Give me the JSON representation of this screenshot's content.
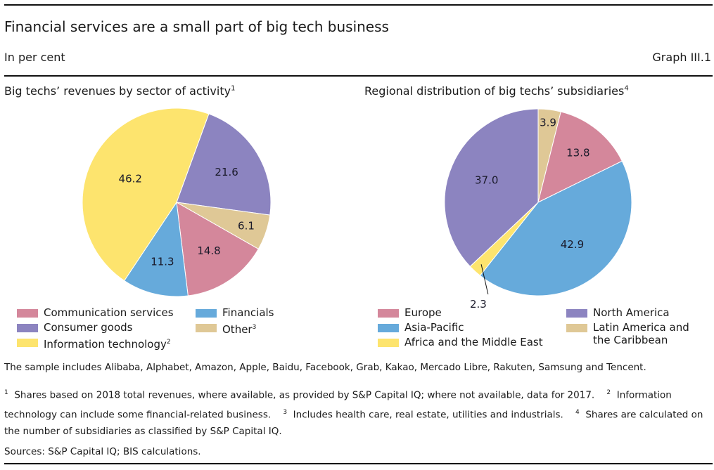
{
  "header": {
    "title": "Financial services are a small part of big tech business",
    "subtitle": "In per cent",
    "graph_id": "Graph III.1"
  },
  "colors": {
    "pink": "#d4879b",
    "purple": "#8c84c0",
    "yellow": "#fde46e",
    "blue": "#66aadb",
    "tan": "#dfc896"
  },
  "chart_data": [
    {
      "type": "pie",
      "title": "Big techs’ revenues by sector of activity",
      "title_footnote": "1",
      "unit": "per cent",
      "slices": [
        {
          "label": "Consumer goods",
          "value": 21.6,
          "color": "#8c84c0"
        },
        {
          "label": "Other",
          "value": 6.1,
          "color": "#dfc896"
        },
        {
          "label": "Communication services",
          "value": 14.8,
          "color": "#d4879b"
        },
        {
          "label": "Financials",
          "value": 11.3,
          "color": "#66aadb"
        },
        {
          "label": "Information technology",
          "value": 46.2,
          "color": "#fde46e"
        }
      ],
      "legend": [
        {
          "label": "Communication services",
          "footnote": "",
          "color": "#d4879b"
        },
        {
          "label": "Consumer goods",
          "footnote": "",
          "color": "#8c84c0"
        },
        {
          "label": "Information technology",
          "footnote": "2",
          "color": "#fde46e"
        },
        {
          "label": "Financials",
          "footnote": "",
          "color": "#66aadb"
        },
        {
          "label": "Other",
          "footnote": "3",
          "color": "#dfc896"
        }
      ]
    },
    {
      "type": "pie",
      "title": "Regional distribution of big techs’ subsidiaries",
      "title_footnote": "4",
      "unit": "per cent",
      "slices": [
        {
          "label": "Latin America and the Caribbean",
          "value": 3.9,
          "color": "#dfc896"
        },
        {
          "label": "Europe",
          "value": 13.8,
          "color": "#d4879b"
        },
        {
          "label": "Asia-Pacific",
          "value": 42.9,
          "color": "#66aadb"
        },
        {
          "label": "Africa and the Middle East",
          "value": 2.3,
          "color": "#fde46e"
        },
        {
          "label": "North America",
          "value": 37.0,
          "color": "#8c84c0"
        }
      ],
      "legend": [
        {
          "label": "Europe",
          "footnote": "",
          "color": "#d4879b"
        },
        {
          "label": "Asia-Pacific",
          "footnote": "",
          "color": "#66aadb"
        },
        {
          "label": "Africa and the Middle East",
          "footnote": "",
          "color": "#fde46e"
        },
        {
          "label": "North America",
          "footnote": "",
          "color": "#8c84c0"
        },
        {
          "label": "Latin America and",
          "footnote": "",
          "color": "#dfc896",
          "label_line2": "the Caribbean"
        }
      ]
    }
  ],
  "notes": {
    "sample": "The sample includes Alibaba, Alphabet, Amazon, Apple, Baidu, Facebook, Grab, Kakao, Mercado Libre, Rakuten, Samsung and Tencent.",
    "footnotes": [
      {
        "num": "1",
        "text": "Shares based on 2018 total revenues, where available, as provided by S&P Capital IQ; where not available, data for 2017."
      },
      {
        "num": "2",
        "text": "Information technology can include some financial-related business."
      },
      {
        "num": "3",
        "text": "Includes health care, real estate, utilities and industrials."
      },
      {
        "num": "4",
        "text": "Shares are calculated on the number of subsidiaries as classified by S&P Capital IQ."
      }
    ],
    "sources": "Sources: S&P Capital IQ; BIS calculations."
  }
}
